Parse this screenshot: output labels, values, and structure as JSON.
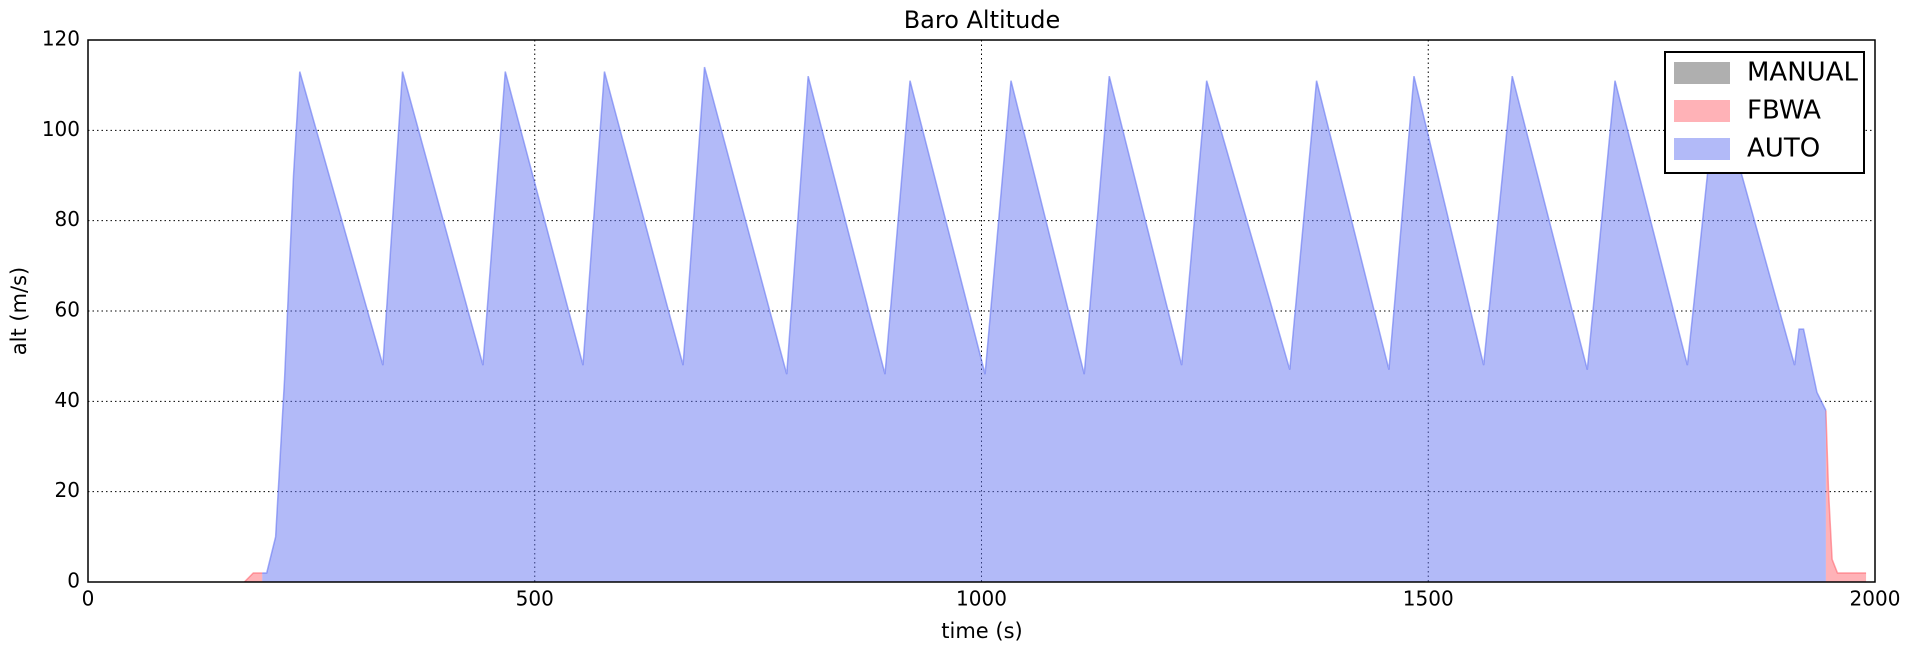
{
  "chart_data": {
    "type": "area",
    "title": "Baro Altitude",
    "x_label": "time (s)",
    "y_label": "alt (m/s)",
    "x": [
      175,
      185,
      195,
      200,
      210,
      220,
      230,
      237,
      330,
      352,
      442,
      467,
      554,
      578,
      666,
      690,
      782,
      806,
      892,
      920,
      1004,
      1033,
      1115,
      1143,
      1224,
      1252,
      1345,
      1375,
      1456,
      1484,
      1562,
      1594,
      1678,
      1709,
      1790,
      1823,
      1910,
      1915,
      1920,
      1935,
      1945,
      1948,
      1952,
      1958,
      1990
    ],
    "series": [
      {
        "name": "MANUAL",
        "color": "#606060",
        "values": [
          null,
          null,
          null,
          null,
          null,
          null,
          null,
          null,
          null,
          null,
          null,
          null,
          null,
          null,
          null,
          null,
          null,
          null,
          null,
          null,
          null,
          null,
          null,
          null,
          null,
          null,
          null,
          null,
          null,
          null,
          null,
          null,
          null,
          null,
          null,
          null,
          null,
          null,
          null,
          null,
          null,
          null,
          null,
          null,
          null
        ]
      },
      {
        "name": "FBWA",
        "color": "#ff6670",
        "values": [
          0,
          2,
          2,
          null,
          null,
          null,
          null,
          null,
          null,
          null,
          null,
          null,
          null,
          null,
          null,
          null,
          null,
          null,
          null,
          null,
          null,
          null,
          null,
          null,
          null,
          null,
          null,
          null,
          null,
          null,
          null,
          null,
          null,
          null,
          null,
          null,
          null,
          null,
          null,
          null,
          38,
          20,
          5,
          2,
          2
        ]
      },
      {
        "name": "AUTO",
        "color": "#6676f2",
        "values": [
          null,
          null,
          2,
          2,
          10,
          45,
          90,
          113,
          48,
          113,
          48,
          113,
          48,
          113,
          48,
          114,
          46,
          112,
          46,
          111,
          46,
          111,
          46,
          112,
          48,
          111,
          47,
          111,
          47,
          112,
          48,
          112,
          47,
          111,
          48,
          110,
          48,
          56,
          56,
          42,
          38,
          null,
          null,
          null,
          null
        ]
      }
    ],
    "xlim": [
      0,
      2000
    ],
    "xticks": [
      0,
      500,
      1000,
      1500,
      2000
    ],
    "ylim": [
      0,
      120
    ],
    "yticks": [
      0,
      20,
      40,
      60,
      80,
      100,
      120
    ],
    "grid": true,
    "legend": "upper right"
  }
}
